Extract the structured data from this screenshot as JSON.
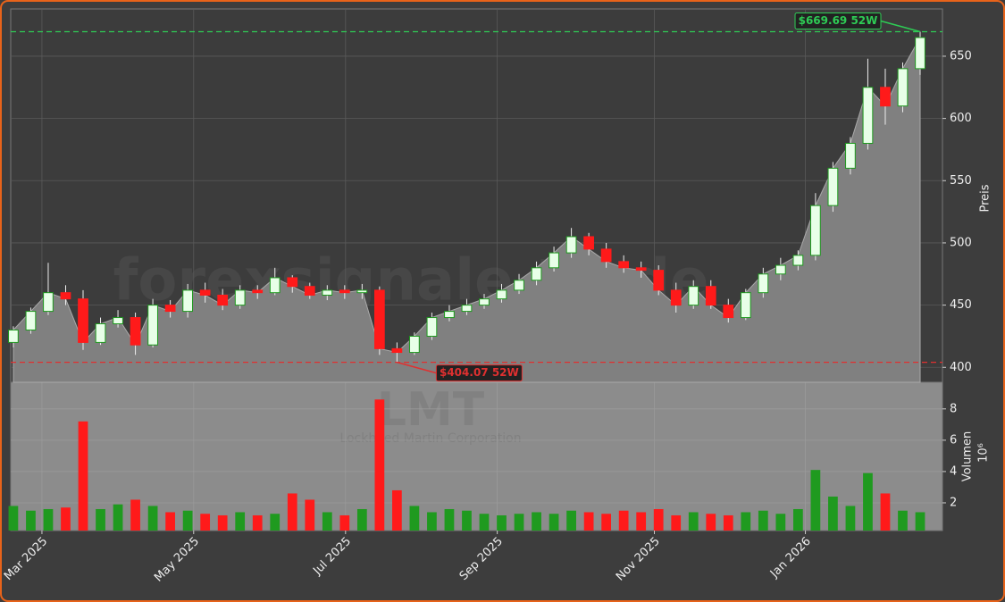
{
  "chart_data": {
    "type": "candlestick",
    "watermarks": [
      "forexsignale.trade",
      "LMT",
      "Lockheed Martin Corporation"
    ],
    "ylabel": "Preis",
    "y2label": "Volumen",
    "y2_scale_label": "10⁶",
    "up_color": "#1f9a1f",
    "down_color": "#ff1a1a",
    "area_color": "#808080",
    "grid": true,
    "xlim": [
      -0.15,
      53.28
    ],
    "xticks": [
      {
        "value": 1.64,
        "label": "Mar 2025"
      },
      {
        "value": 10.34,
        "label": "May 2025"
      },
      {
        "value": 19.05,
        "label": "Jul 2025"
      },
      {
        "value": 27.75,
        "label": "Sep 2025"
      },
      {
        "value": 36.76,
        "label": "Nov 2025"
      },
      {
        "value": 45.42,
        "label": "Jan 2026"
      }
    ],
    "ylim": [
      388,
      688
    ],
    "yticks": [
      400,
      450,
      500,
      550,
      600,
      650
    ],
    "y2lim": [
      0.23,
      9.7
    ],
    "y2ticks": [
      2,
      4,
      6,
      8
    ],
    "open": [
      420,
      430,
      445,
      460,
      455,
      420,
      435,
      440,
      418,
      450,
      445,
      462,
      458,
      450,
      462,
      460,
      472,
      465,
      458,
      462,
      460,
      462,
      415,
      412,
      425,
      440,
      445,
      450,
      455,
      462,
      470,
      480,
      492,
      505,
      495,
      485,
      480,
      478,
      462,
      450,
      465,
      450,
      440,
      460,
      475,
      482,
      490,
      530,
      560,
      580,
      625,
      610,
      640
    ],
    "high": [
      433,
      448,
      484,
      466,
      462,
      440,
      446,
      444,
      455,
      454,
      467,
      468,
      463,
      466,
      466,
      480,
      474,
      468,
      466,
      466,
      467,
      465,
      420,
      428,
      444,
      450,
      455,
      459,
      467,
      475,
      485,
      497,
      512,
      508,
      500,
      490,
      485,
      482,
      468,
      470,
      470,
      455,
      463,
      480,
      488,
      494,
      540,
      565,
      585,
      648,
      640,
      645,
      669.69
    ],
    "low": [
      416,
      427,
      442,
      450,
      414,
      418,
      432,
      410,
      416,
      440,
      440,
      452,
      446,
      447,
      455,
      458,
      460,
      455,
      454,
      455,
      455,
      410,
      404.07,
      410,
      422,
      437,
      442,
      447,
      452,
      459,
      466,
      477,
      488,
      490,
      480,
      476,
      472,
      458,
      444,
      447,
      447,
      436,
      438,
      456,
      470,
      478,
      486,
      525,
      555,
      575,
      595,
      605,
      635
    ],
    "close": [
      430,
      445,
      460,
      455,
      420,
      435,
      440,
      418,
      450,
      445,
      462,
      458,
      450,
      462,
      460,
      472,
      465,
      458,
      462,
      460,
      462,
      415,
      412,
      425,
      440,
      445,
      450,
      455,
      462,
      470,
      480,
      492,
      505,
      495,
      485,
      480,
      478,
      462,
      450,
      465,
      450,
      440,
      460,
      475,
      482,
      490,
      530,
      560,
      580,
      625,
      610,
      640,
      665
    ],
    "volume": [
      1.8,
      1.5,
      1.6,
      1.7,
      7.2,
      1.6,
      1.9,
      2.2,
      1.8,
      1.4,
      1.5,
      1.3,
      1.2,
      1.4,
      1.2,
      1.3,
      2.6,
      2.2,
      1.4,
      1.2,
      1.6,
      8.6,
      2.8,
      1.8,
      1.4,
      1.6,
      1.5,
      1.3,
      1.2,
      1.3,
      1.4,
      1.3,
      1.5,
      1.4,
      1.3,
      1.5,
      1.4,
      1.6,
      1.2,
      1.4,
      1.3,
      1.2,
      1.4,
      1.5,
      1.3,
      1.6,
      4.1,
      2.4,
      1.8,
      3.9,
      2.6,
      1.5,
      1.4
    ],
    "hlines": [
      {
        "value": 669.69,
        "label": "$669.69 52W",
        "color": "#2ecc55",
        "at": 52
      },
      {
        "value": 404.07,
        "label": "$404.07 52W",
        "color": "#e03030",
        "at": 22
      }
    ]
  }
}
